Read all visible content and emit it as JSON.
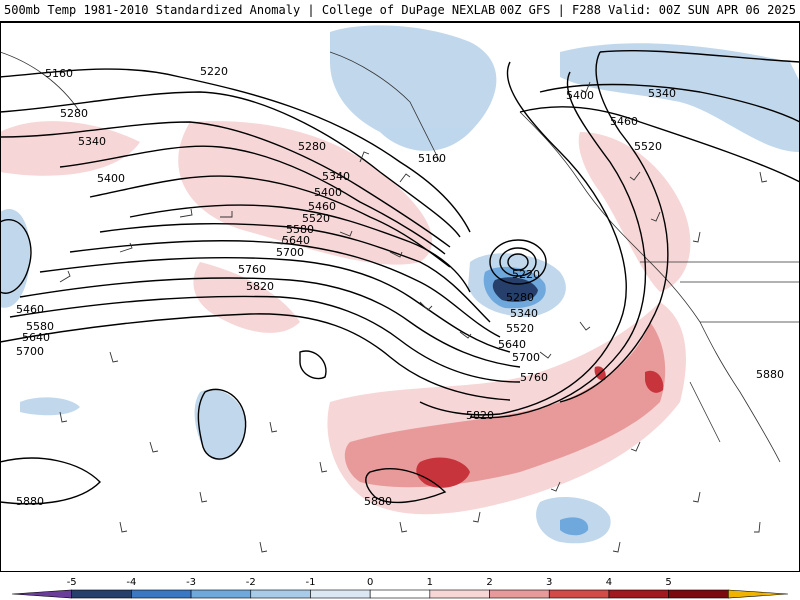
{
  "header": {
    "title_left": "500mb Temp 1981-2010 Standardized Anomaly | College of DuPage NEXLAB",
    "title_right": "00Z GFS | F288 Valid: 00Z SUN APR 06 2025"
  },
  "map": {
    "contour_labels": [
      "5160",
      "5220",
      "5280",
      "5340",
      "5400",
      "5160",
      "5280",
      "5340",
      "5400",
      "5460",
      "5520",
      "5580",
      "5640",
      "5700",
      "5760",
      "5820",
      "5460",
      "5580",
      "5640",
      "5700",
      "5220",
      "5280",
      "5340",
      "5520",
      "5640",
      "5700",
      "5760",
      "5820",
      "5880",
      "5880",
      "5400",
      "5340",
      "5460",
      "5520",
      "5880"
    ]
  },
  "colorbar": {
    "ticks": [
      "-5",
      "-4",
      "-3",
      "-2",
      "-1",
      "0",
      "1",
      "2",
      "3",
      "4",
      "5"
    ],
    "colors": [
      "#6a3d9a",
      "#27406b",
      "#3a78c4",
      "#6fa8dc",
      "#a9cbe8",
      "#dbe8f4",
      "#ffffff",
      "#f7d6d6",
      "#e89a9a",
      "#d14b4b",
      "#a01820",
      "#7a0a10",
      "#f0b400"
    ]
  }
}
